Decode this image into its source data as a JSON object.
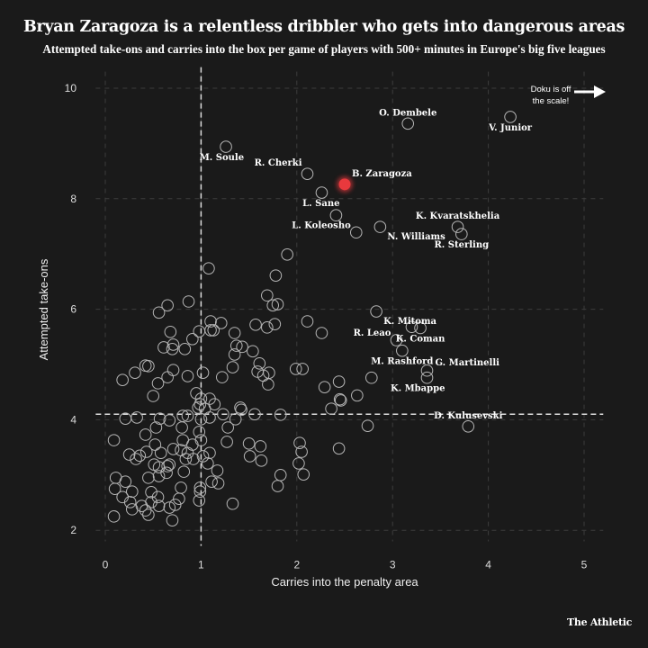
{
  "chart_data": {
    "type": "scatter",
    "title": "Bryan Zaragoza is a relentless dribbler who gets into dangerous areas",
    "subtitle": "Attempted take-ons and carries into the box per game of players with 500+ minutes in Europe's big five leagues",
    "xlabel": "Carries into the penalty area",
    "ylabel": "Attempted take-ons",
    "xlim": [
      -0.1,
      5.2
    ],
    "ylim": [
      1.8,
      10.3
    ],
    "xticks": [
      "0",
      "1",
      "2",
      "3",
      "4",
      "5"
    ],
    "yticks": [
      "2",
      "4",
      "6",
      "8",
      "10"
    ],
    "grid": true,
    "mean_lines": {
      "x": 1.0,
      "y": 4.1
    },
    "annotation": {
      "line1": "Doku is off",
      "line2": "the scale!",
      "icon": "arrow-right-icon"
    },
    "highlight_color": "#e8393d",
    "labeled_points": [
      {
        "name": "O. Dembele",
        "x": 3.16,
        "y": 9.36,
        "place": "above"
      },
      {
        "name": "V. Junior",
        "x": 4.23,
        "y": 9.48,
        "place": "below"
      },
      {
        "name": "M. Soule",
        "x": 1.26,
        "y": 8.94,
        "place": "below-left"
      },
      {
        "name": "R. Cherki",
        "x": 2.11,
        "y": 8.45,
        "place": "above-left"
      },
      {
        "name": "B. Zaragoza",
        "x": 2.5,
        "y": 8.26,
        "place": "above-right",
        "highlight": true
      },
      {
        "name": "L. Sane",
        "x": 2.26,
        "y": 8.11,
        "place": "below-left"
      },
      {
        "name": "L. Koleosho",
        "x": 2.62,
        "y": 7.39,
        "place": "left"
      },
      {
        "name": "N. Williams",
        "x": 2.87,
        "y": 7.49,
        "place": "below-right"
      },
      {
        "name": "K. Kvaratskhelia",
        "x": 3.68,
        "y": 7.49,
        "place": "above"
      },
      {
        "name": "R. Sterling",
        "x": 3.72,
        "y": 7.36,
        "place": "below"
      },
      {
        "name": "K. Mitoma",
        "x": 2.83,
        "y": 5.96,
        "place": "below-right"
      },
      {
        "name": "R. Leao",
        "x": 3.04,
        "y": 5.44,
        "place": "left"
      },
      {
        "name": "K. Coman",
        "x": 3.29,
        "y": 5.66,
        "place": "below"
      },
      {
        "name": "M. Rashford",
        "x": 3.1,
        "y": 5.25,
        "place": "below"
      },
      {
        "name": "G. Martinelli",
        "x": 3.36,
        "y": 4.89,
        "place": "right"
      },
      {
        "name": "K. Mbappe",
        "x": 3.36,
        "y": 4.76,
        "place": "below-left"
      },
      {
        "name": "D. Kulusevski",
        "x": 3.79,
        "y": 3.88,
        "place": "above"
      }
    ],
    "points": [
      [
        2.41,
        7.7
      ],
      [
        3.2,
        5.68
      ],
      [
        2.78,
        4.76
      ],
      [
        1.9,
        6.99
      ],
      [
        1.78,
        6.61
      ],
      [
        1.08,
        6.74
      ],
      [
        1.69,
        6.25
      ],
      [
        1.75,
        6.07
      ],
      [
        1.8,
        6.09
      ],
      [
        0.87,
        6.14
      ],
      [
        0.65,
        6.07
      ],
      [
        0.56,
        5.94
      ],
      [
        1.57,
        5.72
      ],
      [
        1.69,
        5.67
      ],
      [
        1.77,
        5.73
      ],
      [
        2.11,
        5.78
      ],
      [
        2.26,
        5.57
      ],
      [
        1.1,
        5.78
      ],
      [
        1.1,
        5.62
      ],
      [
        1.21,
        5.75
      ],
      [
        1.13,
        5.62
      ],
      [
        0.98,
        5.6
      ],
      [
        0.91,
        5.46
      ],
      [
        0.68,
        5.59
      ],
      [
        0.71,
        5.36
      ],
      [
        0.7,
        5.28
      ],
      [
        0.61,
        5.31
      ],
      [
        0.83,
        5.28
      ],
      [
        1.35,
        5.57
      ],
      [
        1.37,
        5.34
      ],
      [
        1.43,
        5.32
      ],
      [
        1.35,
        5.18
      ],
      [
        1.54,
        5.24
      ],
      [
        1.33,
        4.95
      ],
      [
        1.61,
        5.02
      ],
      [
        1.59,
        4.87
      ],
      [
        1.65,
        4.8
      ],
      [
        1.71,
        4.85
      ],
      [
        1.7,
        4.64
      ],
      [
        1.99,
        4.92
      ],
      [
        2.06,
        4.92
      ],
      [
        1.22,
        4.77
      ],
      [
        1.02,
        4.85
      ],
      [
        0.86,
        4.79
      ],
      [
        0.71,
        4.9
      ],
      [
        0.65,
        4.77
      ],
      [
        0.55,
        4.66
      ],
      [
        0.5,
        4.43
      ],
      [
        0.42,
        4.98
      ],
      [
        0.45,
        4.97
      ],
      [
        0.31,
        4.85
      ],
      [
        0.18,
        4.72
      ],
      [
        2.29,
        4.59
      ],
      [
        2.44,
        4.69
      ],
      [
        2.46,
        4.35
      ],
      [
        2.45,
        4.37
      ],
      [
        2.36,
        4.2
      ],
      [
        2.63,
        4.44
      ],
      [
        0.95,
        4.48
      ],
      [
        1.0,
        4.38
      ],
      [
        1.09,
        4.38
      ],
      [
        1.14,
        4.28
      ],
      [
        0.99,
        4.28
      ],
      [
        1.04,
        4.2
      ],
      [
        0.97,
        4.22
      ],
      [
        1.41,
        4.22
      ],
      [
        1.42,
        4.18
      ],
      [
        1.56,
        4.1
      ],
      [
        1.83,
        4.09
      ],
      [
        0.21,
        4.02
      ],
      [
        0.33,
        4.04
      ],
      [
        0.57,
        4.02
      ],
      [
        0.67,
        3.99
      ],
      [
        0.81,
        4.07
      ],
      [
        0.86,
        4.07
      ],
      [
        1.0,
        4.01
      ],
      [
        1.09,
        4.04
      ],
      [
        1.23,
        4.1
      ],
      [
        1.36,
        4.01
      ],
      [
        1.28,
        3.86
      ],
      [
        2.74,
        3.89
      ],
      [
        0.09,
        3.63
      ],
      [
        0.42,
        3.73
      ],
      [
        0.53,
        3.86
      ],
      [
        0.8,
        3.86
      ],
      [
        0.98,
        3.78
      ],
      [
        1.0,
        3.63
      ],
      [
        1.27,
        3.6
      ],
      [
        1.5,
        3.57
      ],
      [
        1.62,
        3.52
      ],
      [
        1.51,
        3.34
      ],
      [
        1.63,
        3.26
      ],
      [
        2.03,
        3.58
      ],
      [
        2.05,
        3.42
      ],
      [
        2.02,
        3.21
      ],
      [
        2.07,
        3.01
      ],
      [
        1.83,
        3.0
      ],
      [
        1.8,
        2.8
      ],
      [
        1.33,
        2.48
      ],
      [
        2.44,
        3.48
      ],
      [
        0.52,
        3.55
      ],
      [
        0.25,
        3.37
      ],
      [
        0.36,
        3.35
      ],
      [
        0.32,
        3.29
      ],
      [
        0.43,
        3.42
      ],
      [
        0.58,
        3.4
      ],
      [
        0.71,
        3.47
      ],
      [
        0.79,
        3.45
      ],
      [
        0.81,
        3.63
      ],
      [
        0.91,
        3.55
      ],
      [
        0.86,
        3.4
      ],
      [
        0.84,
        3.29
      ],
      [
        0.92,
        3.29
      ],
      [
        1.02,
        3.34
      ],
      [
        1.09,
        3.4
      ],
      [
        1.07,
        3.21
      ],
      [
        1.17,
        3.08
      ],
      [
        1.11,
        2.88
      ],
      [
        1.18,
        2.85
      ],
      [
        0.51,
        3.19
      ],
      [
        0.56,
        3.14
      ],
      [
        0.65,
        3.16
      ],
      [
        0.67,
        3.19
      ],
      [
        0.64,
        3.04
      ],
      [
        0.56,
        2.98
      ],
      [
        0.45,
        2.95
      ],
      [
        0.82,
        3.06
      ],
      [
        0.11,
        2.95
      ],
      [
        0.21,
        2.88
      ],
      [
        0.1,
        2.75
      ],
      [
        0.18,
        2.6
      ],
      [
        0.28,
        2.7
      ],
      [
        0.26,
        2.51
      ],
      [
        0.28,
        2.38
      ],
      [
        0.38,
        2.44
      ],
      [
        0.48,
        2.69
      ],
      [
        0.55,
        2.6
      ],
      [
        0.48,
        2.51
      ],
      [
        0.56,
        2.44
      ],
      [
        0.42,
        2.36
      ],
      [
        0.45,
        2.28
      ],
      [
        0.67,
        2.41
      ],
      [
        0.73,
        2.46
      ],
      [
        0.77,
        2.57
      ],
      [
        0.79,
        2.77
      ],
      [
        0.99,
        2.77
      ],
      [
        0.99,
        2.7
      ],
      [
        0.98,
        2.54
      ],
      [
        0.7,
        2.18
      ],
      [
        0.09,
        2.25
      ]
    ]
  },
  "brand": "The Athletic"
}
